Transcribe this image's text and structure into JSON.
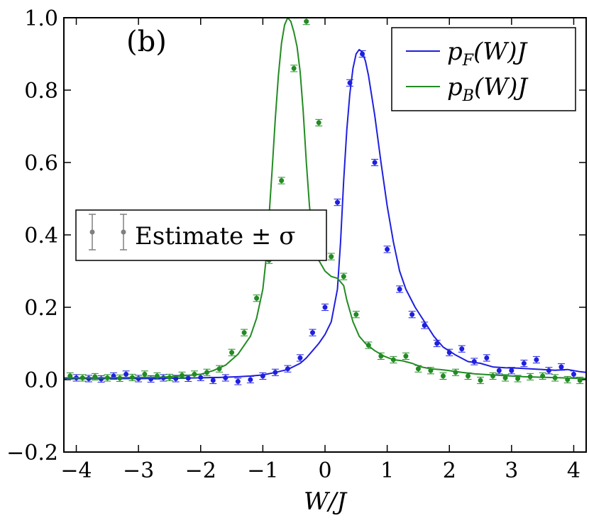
{
  "chart_data": {
    "type": "line",
    "panel_label": "(b)",
    "xlabel": "W/J",
    "xlim": [
      -4.2,
      4.2
    ],
    "ylim": [
      -0.2,
      1.0
    ],
    "x_ticks": [
      -4,
      -3,
      -2,
      -1,
      0,
      1,
      2,
      3,
      4
    ],
    "x_tick_labels": [
      "−4",
      "−3",
      "−2",
      "−1",
      "0",
      "1",
      "2",
      "3",
      "4"
    ],
    "y_ticks": [
      -0.2,
      0.0,
      0.2,
      0.4,
      0.6,
      0.8,
      1.0
    ],
    "y_tick_labels": [
      "−0.2",
      "0.0",
      "0.2",
      "0.4",
      "0.6",
      "0.8",
      "1.0"
    ],
    "legend": {
      "position": "top-right",
      "entries": [
        {
          "label": "p_F(W)J",
          "base": "p",
          "sub": "F",
          "rest": "(W)J",
          "color": "#1f1fe0"
        },
        {
          "label": "p_B(W)J",
          "base": "p",
          "sub": "B",
          "rest": "(W)J",
          "color": "#228b22"
        }
      ]
    },
    "estimate_legend": {
      "label": "Estimate ± σ",
      "color": "#808080",
      "position": "center-left"
    },
    "series": [
      {
        "name": "p_F(W)J",
        "color": "#1f1fe0",
        "line_x": [
          -4.2,
          -3.6,
          -3.0,
          -2.4,
          -2.0,
          -1.7,
          -1.4,
          -1.2,
          -1.0,
          -0.8,
          -0.6,
          -0.4,
          -0.3,
          -0.2,
          -0.1,
          0.0,
          0.1,
          0.2,
          0.25,
          0.3,
          0.35,
          0.4,
          0.45,
          0.5,
          0.55,
          0.6,
          0.65,
          0.7,
          0.8,
          0.9,
          1.0,
          1.1,
          1.2,
          1.3,
          1.45,
          1.6,
          1.75,
          1.9,
          2.1,
          2.3,
          2.5,
          2.7,
          2.9,
          3.1,
          3.3,
          3.5,
          3.7,
          3.9,
          4.1,
          4.2
        ],
        "line_y": [
          0.003,
          0.003,
          0.003,
          0.004,
          0.005,
          0.006,
          0.008,
          0.01,
          0.013,
          0.02,
          0.028,
          0.045,
          0.06,
          0.08,
          0.1,
          0.125,
          0.16,
          0.25,
          0.38,
          0.55,
          0.69,
          0.79,
          0.86,
          0.9,
          0.912,
          0.905,
          0.88,
          0.84,
          0.73,
          0.6,
          0.48,
          0.38,
          0.3,
          0.25,
          0.2,
          0.16,
          0.12,
          0.09,
          0.068,
          0.05,
          0.045,
          0.035,
          0.033,
          0.032,
          0.03,
          0.028,
          0.026,
          0.028,
          0.022,
          0.02
        ],
        "points_x": [
          -4.0,
          -3.8,
          -3.6,
          -3.4,
          -3.2,
          -3.0,
          -2.8,
          -2.6,
          -2.4,
          -2.2,
          -2.0,
          -1.8,
          -1.6,
          -1.4,
          -1.2,
          -1.0,
          -0.8,
          -0.6,
          -0.4,
          -0.2,
          0.0,
          0.2,
          0.4,
          0.6,
          0.8,
          1.0,
          1.2,
          1.4,
          1.6,
          1.8,
          2.0,
          2.2,
          2.4,
          2.6,
          2.8,
          3.0,
          3.2,
          3.4,
          3.6,
          3.8,
          4.0
        ],
        "points_y": [
          0.005,
          0.003,
          0.002,
          0.01,
          0.015,
          0.003,
          0.002,
          0.005,
          0.003,
          0.004,
          0.006,
          -0.002,
          0.005,
          -0.005,
          0.0,
          0.01,
          0.02,
          0.03,
          0.06,
          0.13,
          0.2,
          0.49,
          0.82,
          0.9,
          0.6,
          0.36,
          0.25,
          0.18,
          0.15,
          0.1,
          0.075,
          0.085,
          0.05,
          0.06,
          0.025,
          0.025,
          0.045,
          0.055,
          0.025,
          0.035,
          0.015
        ],
        "errors": [
          0.009,
          0.009,
          0.009,
          0.009,
          0.009,
          0.009,
          0.009,
          0.009,
          0.009,
          0.009,
          0.009,
          0.009,
          0.009,
          0.009,
          0.009,
          0.009,
          0.009,
          0.009,
          0.009,
          0.009,
          0.009,
          0.009,
          0.009,
          0.009,
          0.009,
          0.009,
          0.009,
          0.009,
          0.009,
          0.009,
          0.009,
          0.009,
          0.009,
          0.009,
          0.009,
          0.009,
          0.009,
          0.009,
          0.009,
          0.009,
          0.009
        ]
      },
      {
        "name": "p_B(W)J",
        "color": "#228b22",
        "line_x": [
          -4.2,
          -3.6,
          -3.0,
          -2.6,
          -2.3,
          -2.0,
          -1.8,
          -1.6,
          -1.4,
          -1.2,
          -1.1,
          -1.0,
          -0.95,
          -0.9,
          -0.85,
          -0.8,
          -0.75,
          -0.7,
          -0.65,
          -0.6,
          -0.55,
          -0.5,
          -0.45,
          -0.4,
          -0.35,
          -0.3,
          -0.25,
          -0.2,
          -0.1,
          0.0,
          0.1,
          0.2,
          0.3,
          0.35,
          0.45,
          0.55,
          0.65,
          0.8,
          0.95,
          1.1,
          1.25,
          1.4,
          1.55,
          1.7,
          1.85,
          2.0,
          2.2,
          2.4,
          2.6,
          2.8,
          3.0,
          3.2,
          3.4,
          3.6,
          3.8,
          4.0,
          4.2
        ],
        "line_y": [
          0.005,
          0.005,
          0.006,
          0.007,
          0.01,
          0.015,
          0.025,
          0.04,
          0.07,
          0.12,
          0.17,
          0.25,
          0.33,
          0.45,
          0.58,
          0.72,
          0.84,
          0.93,
          0.98,
          1.0,
          0.99,
          0.96,
          0.92,
          0.85,
          0.74,
          0.6,
          0.48,
          0.4,
          0.33,
          0.3,
          0.285,
          0.28,
          0.26,
          0.22,
          0.16,
          0.12,
          0.1,
          0.08,
          0.065,
          0.055,
          0.052,
          0.045,
          0.035,
          0.03,
          0.028,
          0.025,
          0.02,
          0.016,
          0.014,
          0.012,
          0.01,
          0.008,
          0.007,
          0.006,
          0.005,
          0.004,
          0.003
        ],
        "points_x": [
          -4.1,
          -3.9,
          -3.7,
          -3.5,
          -3.3,
          -3.1,
          -2.9,
          -2.7,
          -2.5,
          -2.3,
          -2.1,
          -1.9,
          -1.7,
          -1.5,
          -1.3,
          -1.1,
          -0.9,
          -0.7,
          -0.5,
          -0.3,
          -0.1,
          0.1,
          0.3,
          0.5,
          0.7,
          0.9,
          1.1,
          1.3,
          1.5,
          1.7,
          1.9,
          2.1,
          2.3,
          2.5,
          2.7,
          2.9,
          3.1,
          3.3,
          3.5,
          3.7,
          3.9,
          4.1
        ],
        "points_y": [
          0.01,
          0.005,
          0.008,
          0.005,
          0.004,
          0.006,
          0.015,
          0.01,
          0.006,
          0.012,
          0.015,
          0.02,
          0.03,
          0.075,
          0.13,
          0.225,
          0.33,
          0.55,
          0.86,
          0.99,
          0.71,
          0.34,
          0.285,
          0.18,
          0.095,
          0.065,
          0.055,
          0.065,
          0.03,
          0.025,
          0.01,
          0.02,
          0.01,
          -0.002,
          0.01,
          0.005,
          0.003,
          0.008,
          0.01,
          0.005,
          0.0,
          -0.002
        ],
        "errors": [
          0.009,
          0.009,
          0.009,
          0.009,
          0.009,
          0.009,
          0.009,
          0.009,
          0.009,
          0.009,
          0.009,
          0.009,
          0.009,
          0.009,
          0.009,
          0.009,
          0.009,
          0.009,
          0.009,
          0.009,
          0.009,
          0.009,
          0.009,
          0.009,
          0.009,
          0.009,
          0.009,
          0.009,
          0.009,
          0.009,
          0.009,
          0.009,
          0.009,
          0.009,
          0.009,
          0.009,
          0.009,
          0.009,
          0.009,
          0.009,
          0.009,
          0.009
        ]
      }
    ]
  }
}
